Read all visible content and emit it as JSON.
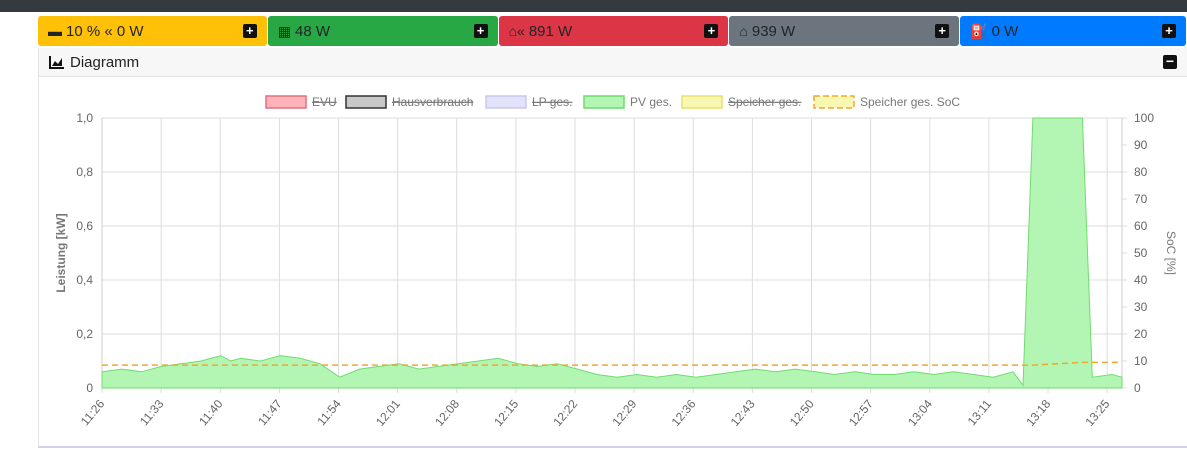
{
  "tiles": [
    {
      "name": "battery-tile",
      "icon": "car-battery-icon",
      "text": "10 % « 0 W",
      "bg": "#ffc107",
      "color": "#212529"
    },
    {
      "name": "pv-tile",
      "icon": "solar-panel-icon",
      "text": "48 W",
      "bg": "#28a745",
      "color": "#212529"
    },
    {
      "name": "grid-tile",
      "icon": "home-grid-icon",
      "text": "891 W",
      "bg": "#dc3545",
      "color": "#212529"
    },
    {
      "name": "house-tile",
      "icon": "home-icon",
      "text": "939 W",
      "bg": "#6c757d",
      "color": "#212529"
    },
    {
      "name": "charge-tile",
      "icon": "charging-station-icon",
      "text": "0 W",
      "bg": "#007bff",
      "color": "#212529"
    }
  ],
  "card": {
    "title": "Diagramm"
  },
  "chart_data": {
    "type": "area",
    "legend": [
      {
        "label": "EVU",
        "fill": "#ffb3b8",
        "stroke": "#e07080",
        "hidden": true
      },
      {
        "label": "Hausverbrauch",
        "fill": "#c8c8c8",
        "stroke": "#333333",
        "hidden": true
      },
      {
        "label": "LP ges.",
        "fill": "#e2e2f8",
        "stroke": "#c8c8ee",
        "hidden": true
      },
      {
        "label": "PV ges.",
        "fill": "#b3f5b3",
        "stroke": "#6fdc6f",
        "hidden": false
      },
      {
        "label": "Speicher ges.",
        "fill": "#f8f8b0",
        "stroke": "#e8e070",
        "hidden": true
      },
      {
        "label": "Speicher ges. SoC",
        "fill": "#f8f8b0",
        "stroke": "#f0a830",
        "hidden": false,
        "dashed": true
      }
    ],
    "ylabel": "Leistung [kW]",
    "y2label": "SoC [%]",
    "ylim": [
      0,
      1.0
    ],
    "y2lim": [
      0,
      100
    ],
    "yticks": [
      "0",
      "0,2",
      "0,4",
      "0,6",
      "0,8",
      "1,0"
    ],
    "y2ticks": [
      "0",
      "10",
      "20",
      "30",
      "40",
      "50",
      "60",
      "70",
      "80",
      "90",
      "100"
    ],
    "xticks": [
      "11:26",
      "11:33",
      "11:40",
      "11:47",
      "11:54",
      "12:01",
      "12:08",
      "12:15",
      "12:22",
      "12:29",
      "12:36",
      "12:43",
      "12:50",
      "12:57",
      "13:04",
      "13:11",
      "13:18",
      "13:25"
    ],
    "series": [
      {
        "name": "PV ges.",
        "axis": "left",
        "points": [
          [
            0,
            0.06
          ],
          [
            2,
            0.07
          ],
          [
            4,
            0.06
          ],
          [
            6,
            0.08
          ],
          [
            8,
            0.09
          ],
          [
            10,
            0.1
          ],
          [
            12,
            0.12
          ],
          [
            13,
            0.1
          ],
          [
            14,
            0.11
          ],
          [
            16,
            0.1
          ],
          [
            18,
            0.12
          ],
          [
            20,
            0.11
          ],
          [
            22,
            0.09
          ],
          [
            24,
            0.04
          ],
          [
            26,
            0.07
          ],
          [
            28,
            0.08
          ],
          [
            30,
            0.09
          ],
          [
            32,
            0.07
          ],
          [
            34,
            0.08
          ],
          [
            36,
            0.09
          ],
          [
            38,
            0.1
          ],
          [
            40,
            0.11
          ],
          [
            42,
            0.09
          ],
          [
            44,
            0.08
          ],
          [
            46,
            0.09
          ],
          [
            48,
            0.07
          ],
          [
            50,
            0.05
          ],
          [
            52,
            0.04
          ],
          [
            54,
            0.05
          ],
          [
            56,
            0.04
          ],
          [
            58,
            0.05
          ],
          [
            60,
            0.04
          ],
          [
            62,
            0.05
          ],
          [
            64,
            0.06
          ],
          [
            66,
            0.07
          ],
          [
            68,
            0.06
          ],
          [
            70,
            0.07
          ],
          [
            72,
            0.06
          ],
          [
            74,
            0.05
          ],
          [
            76,
            0.06
          ],
          [
            78,
            0.05
          ],
          [
            80,
            0.05
          ],
          [
            82,
            0.06
          ],
          [
            84,
            0.05
          ],
          [
            86,
            0.06
          ],
          [
            88,
            0.05
          ],
          [
            90,
            0.04
          ],
          [
            92,
            0.06
          ],
          [
            93,
            0.01
          ],
          [
            94,
            1.0
          ],
          [
            99,
            1.0
          ],
          [
            100,
            0.04
          ],
          [
            102,
            0.05
          ],
          [
            103,
            0.04
          ]
        ]
      },
      {
        "name": "Speicher ges. SoC",
        "axis": "right",
        "points": [
          [
            0,
            8.5
          ],
          [
            93,
            8.5
          ],
          [
            94,
            8.5
          ],
          [
            99,
            9.5
          ],
          [
            103,
            9.5
          ]
        ]
      }
    ]
  }
}
